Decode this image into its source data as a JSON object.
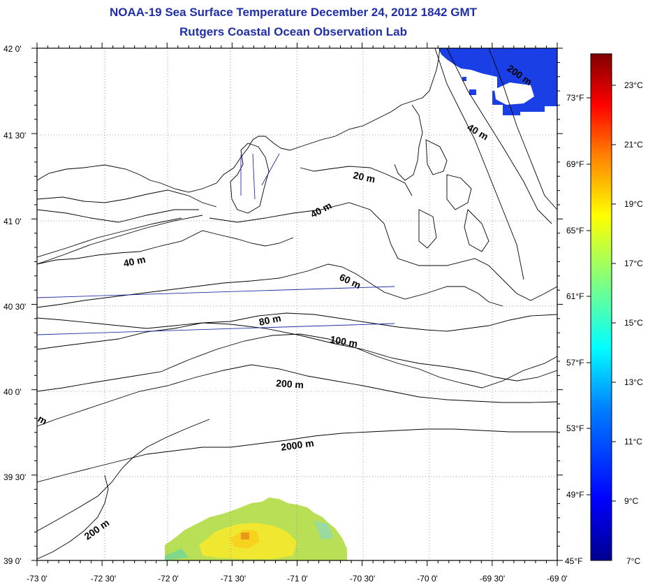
{
  "title": "NOAA-19 Sea Surface Temperature December 24, 2012 1842 GMT",
  "subtitle": "Rutgers Coastal Ocean Observation Lab",
  "x_ticks": [
    "-73 0'",
    "-72 30'",
    "-72 0'",
    "-71 30'",
    "-71 0'",
    "-70 30'",
    "-70 0'",
    "-69 30'",
    "-69 0'"
  ],
  "y_ticks": [
    "42 0'",
    "41 30'",
    "41 0'",
    "40 30'",
    "40 0'",
    "39 30'",
    "39 0'"
  ],
  "contour_labels": [
    "200 m",
    "40 m",
    "20 m",
    "40 m",
    "40 m",
    "60 m",
    "80 m",
    "100 m",
    "200 m",
    "2000 m",
    "200 m",
    "m"
  ],
  "colorbar": {
    "celsius": [
      "23°C",
      "21°C",
      "19°C",
      "17°C",
      "15°C",
      "13°C",
      "11°C",
      "9°C",
      "7°C"
    ],
    "fahrenheit": [
      "73°F",
      "69°F",
      "65°F",
      "61°F",
      "57°F",
      "53°F",
      "49°F",
      "45°F"
    ],
    "colors": [
      "#00008f",
      "#0000ff",
      "#0080ff",
      "#00ffff",
      "#80ff80",
      "#ffff00",
      "#ff8000",
      "#ff0000",
      "#800000"
    ]
  },
  "sst_patches": [
    {
      "region": "north-east",
      "color": "#1a3fe6"
    },
    {
      "region": "south",
      "color": "#c8e640"
    }
  ]
}
